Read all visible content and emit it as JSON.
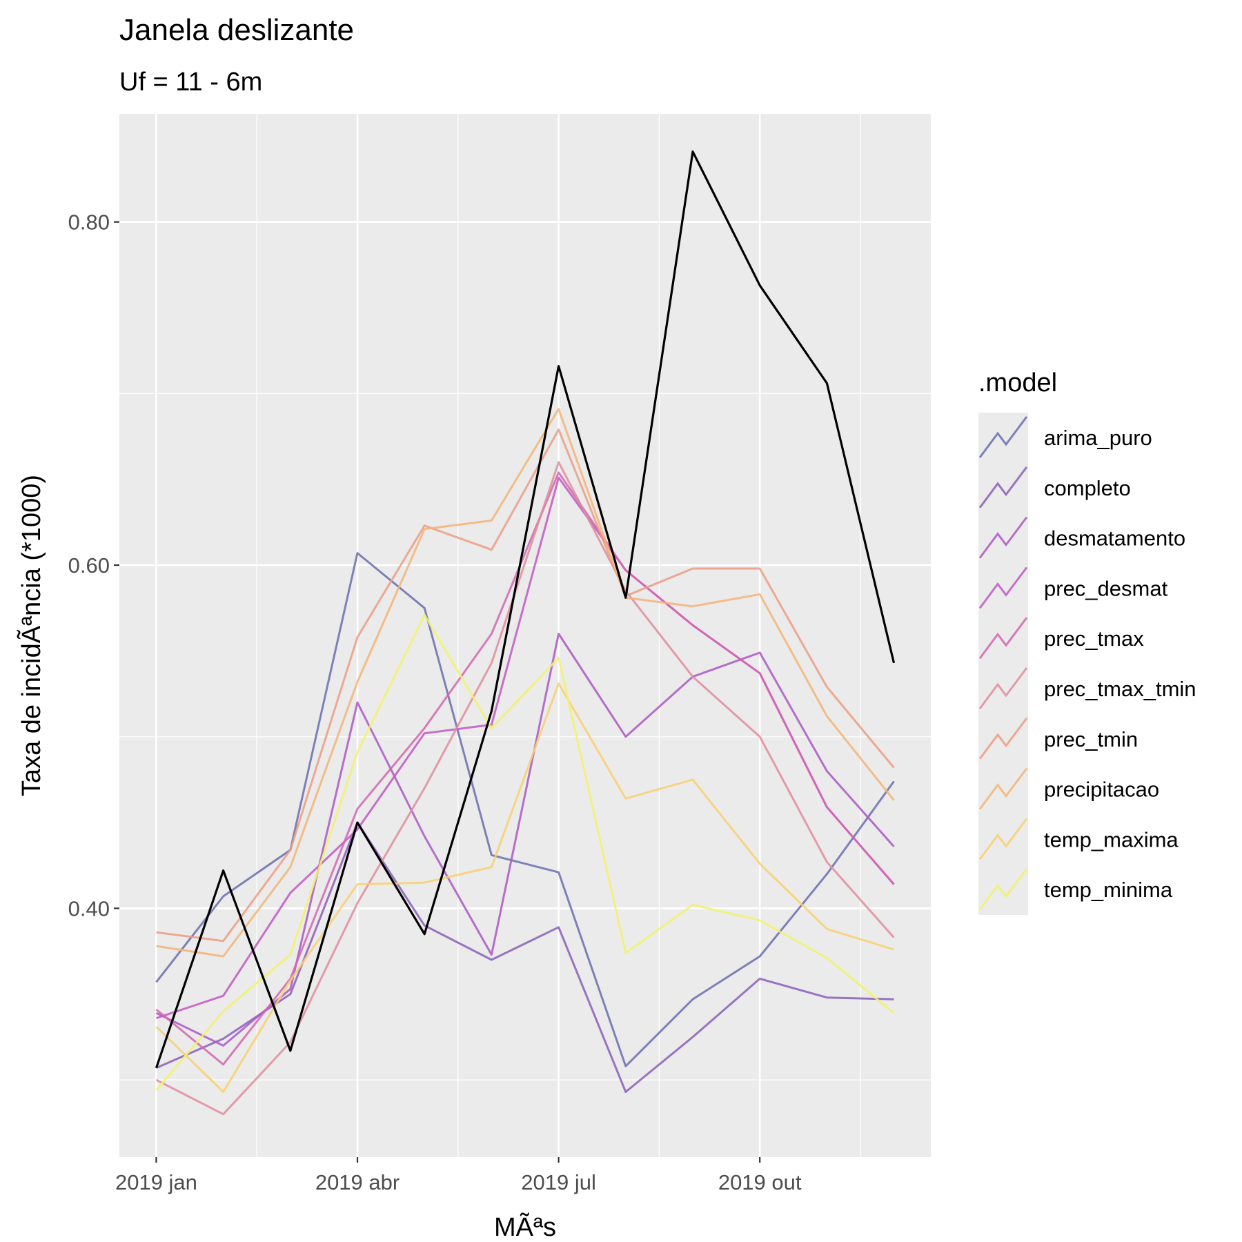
{
  "chart_data": {
    "type": "line",
    "title": "Janela deslizante",
    "subtitle": "Uf = 11 - 6m",
    "xlabel": "MÃªs",
    "ylabel": "Taxa de incidÃªncia (*1000)",
    "x_ticks": [
      "2019 jan",
      "2019 abr",
      "2019 jul",
      "2019 out"
    ],
    "x_tick_months": [
      1,
      4,
      7,
      10
    ],
    "y_ticks": [
      "0.40",
      "0.60",
      "0.80"
    ],
    "y_tick_values": [
      0.4,
      0.6,
      0.8
    ],
    "xlim": [
      0.45,
      12.55
    ],
    "ylim": [
      0.255,
      0.863
    ],
    "grid": true,
    "legend_title": ".model",
    "legend_position": "right",
    "x": [
      1,
      2,
      3,
      4,
      5,
      6,
      7,
      8,
      9,
      10,
      11,
      12
    ],
    "observed": {
      "color": "#000000",
      "values": [
        0.307,
        0.422,
        0.317,
        0.45,
        0.385,
        0.515,
        0.716,
        0.581,
        0.841,
        0.763,
        0.706,
        0.543
      ]
    },
    "series": [
      {
        "name": "arima_puro",
        "color": "#6a6dad",
        "values": [
          0.357,
          0.407,
          0.434,
          0.607,
          0.575,
          0.431,
          0.421,
          0.308,
          0.347,
          0.372,
          0.42,
          0.474
        ]
      },
      {
        "name": "completo",
        "color": "#8a5eb8",
        "values": [
          0.307,
          0.324,
          0.35,
          0.45,
          0.39,
          0.37,
          0.389,
          0.293,
          0.325,
          0.359,
          0.348,
          0.347
        ]
      },
      {
        "name": "desmatamento",
        "color": "#aa58c4",
        "values": [
          0.339,
          0.32,
          0.353,
          0.52,
          0.442,
          0.373,
          0.56,
          0.5,
          0.535,
          0.549,
          0.48,
          0.436
        ]
      },
      {
        "name": "prec_desmat",
        "color": "#c058c2",
        "values": [
          0.336,
          0.349,
          0.409,
          0.446,
          0.502,
          0.507,
          0.651,
          0.597,
          0.565,
          0.537,
          0.459,
          0.414
        ]
      },
      {
        "name": "prec_tmax",
        "color": "#d366b0",
        "values": [
          0.341,
          0.309,
          0.359,
          0.458,
          0.505,
          0.56,
          0.654,
          0.597,
          0.565,
          0.537,
          0.459,
          0.414
        ]
      },
      {
        "name": "prec_tmax_tmin",
        "color": "#e08c9c",
        "values": [
          0.3,
          0.28,
          0.322,
          0.403,
          0.47,
          0.543,
          0.66,
          0.585,
          0.535,
          0.5,
          0.427,
          0.383
        ]
      },
      {
        "name": "prec_tmin",
        "color": "#ec9c82",
        "values": [
          0.386,
          0.381,
          0.434,
          0.558,
          0.623,
          0.609,
          0.679,
          0.582,
          0.598,
          0.598,
          0.529,
          0.482
        ]
      },
      {
        "name": "precipitacao",
        "color": "#f5b475",
        "values": [
          0.378,
          0.372,
          0.424,
          0.532,
          0.621,
          0.626,
          0.691,
          0.581,
          0.576,
          0.583,
          0.512,
          0.463
        ]
      },
      {
        "name": "temp_maxima",
        "color": "#f8d06e",
        "values": [
          0.331,
          0.293,
          0.358,
          0.414,
          0.415,
          0.424,
          0.531,
          0.464,
          0.475,
          0.426,
          0.388,
          0.376
        ]
      },
      {
        "name": "temp_minima",
        "color": "#f2f26a",
        "values": [
          0.294,
          0.34,
          0.373,
          0.491,
          0.571,
          0.505,
          0.546,
          0.374,
          0.402,
          0.393,
          0.371,
          0.339
        ]
      }
    ]
  }
}
